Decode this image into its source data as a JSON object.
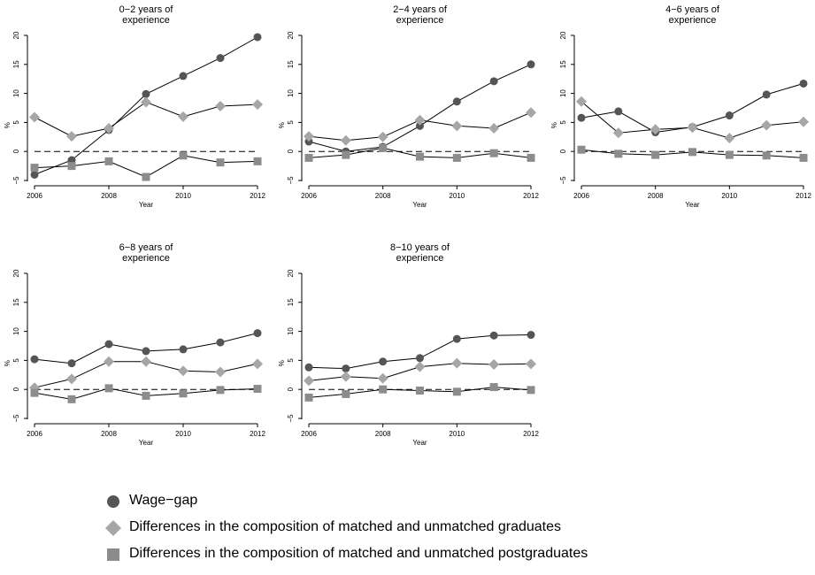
{
  "colors": {
    "wage_gap": "#555555",
    "graduates": "#a6a6a6",
    "postgraduates": "#8c8c8c",
    "line": "#000000"
  },
  "legend": [
    {
      "series": "Wage−gap",
      "marker": "circle"
    },
    {
      "series": "Differences in the composition of matched and unmatched graduates",
      "marker": "diamond"
    },
    {
      "series": "Differences in the composition of matched and unmatched postgraduates",
      "marker": "square"
    }
  ],
  "chart_data": [
    {
      "type": "line",
      "title": [
        "0−2 years of",
        "experience"
      ],
      "xlabel": "Year",
      "ylabel": "%",
      "x": [
        2006,
        2007,
        2008,
        2009,
        2010,
        2011,
        2012
      ],
      "xticks": [
        "2006",
        "2008",
        "2010",
        "2012"
      ],
      "yticks": [
        "−5",
        "0",
        "5",
        "10",
        "15",
        "20"
      ],
      "xlim": [
        2006,
        2012
      ],
      "ylim": [
        -5,
        20
      ],
      "reference_line": 0,
      "series": [
        {
          "name": "Wage−gap",
          "values": [
            -4.0,
            -1.5,
            3.7,
            9.9,
            13.0,
            16.1,
            19.7
          ]
        },
        {
          "name": "Differences in the composition of matched and unmatched graduates",
          "values": [
            5.9,
            2.6,
            4.0,
            8.5,
            6.0,
            7.8,
            8.1
          ]
        },
        {
          "name": "Differences in the composition of matched and unmatched postgraduates",
          "values": [
            -2.8,
            -2.5,
            -1.7,
            -4.4,
            -0.7,
            -1.9,
            -1.7
          ]
        }
      ]
    },
    {
      "type": "line",
      "title": [
        "2−4 years of",
        "experience"
      ],
      "xlabel": "Year",
      "ylabel": "%",
      "x": [
        2006,
        2007,
        2008,
        2009,
        2010,
        2011,
        2012
      ],
      "xticks": [
        "2006",
        "2008",
        "2010",
        "2012"
      ],
      "yticks": [
        "−5",
        "0",
        "5",
        "10",
        "15",
        "20"
      ],
      "xlim": [
        2006,
        2012
      ],
      "ylim": [
        -5,
        20
      ],
      "reference_line": 0,
      "series": [
        {
          "name": "Wage−gap",
          "values": [
            1.7,
            0.0,
            0.8,
            4.4,
            8.6,
            12.1,
            15.0
          ]
        },
        {
          "name": "Differences in the composition of matched and unmatched graduates",
          "values": [
            2.6,
            1.9,
            2.5,
            5.4,
            4.4,
            4.0,
            6.7
          ]
        },
        {
          "name": "Differences in the composition of matched and unmatched postgraduates",
          "values": [
            -1.1,
            -0.6,
            0.6,
            -0.9,
            -1.1,
            -0.3,
            -1.1
          ]
        }
      ]
    },
    {
      "type": "line",
      "title": [
        "4−6 years of",
        "experience"
      ],
      "xlabel": "Year",
      "ylabel": "%",
      "x": [
        2006,
        2007,
        2008,
        2009,
        2010,
        2011,
        2012
      ],
      "xticks": [
        "2006",
        "2008",
        "2010",
        "2012"
      ],
      "yticks": [
        "−5",
        "0",
        "5",
        "10",
        "15",
        "20"
      ],
      "xlim": [
        2006,
        2012
      ],
      "ylim": [
        -5,
        20
      ],
      "reference_line": 0,
      "series": [
        {
          "name": "Wage−gap",
          "values": [
            5.8,
            6.9,
            3.3,
            4.2,
            6.2,
            9.8,
            11.7
          ]
        },
        {
          "name": "Differences in the composition of matched and unmatched graduates",
          "values": [
            8.6,
            3.2,
            3.8,
            4.1,
            2.3,
            4.5,
            5.1
          ]
        },
        {
          "name": "Differences in the composition of matched and unmatched postgraduates",
          "values": [
            0.3,
            -0.4,
            -0.6,
            -0.1,
            -0.6,
            -0.7,
            -1.1
          ]
        }
      ]
    },
    {
      "type": "line",
      "title": [
        "6−8 years of",
        "experience"
      ],
      "xlabel": "Year",
      "ylabel": "%",
      "x": [
        2006,
        2007,
        2008,
        2009,
        2010,
        2011,
        2012
      ],
      "xticks": [
        "2006",
        "2008",
        "2010",
        "2012"
      ],
      "yticks": [
        "−5",
        "0",
        "5",
        "10",
        "15",
        "20"
      ],
      "xlim": [
        2006,
        2012
      ],
      "ylim": [
        -5,
        20
      ],
      "reference_line": 0,
      "series": [
        {
          "name": "Wage−gap",
          "values": [
            5.2,
            4.5,
            7.8,
            6.6,
            6.9,
            8.1,
            9.7
          ]
        },
        {
          "name": "Differences in the composition of matched and unmatched graduates",
          "values": [
            0.3,
            1.8,
            4.8,
            4.8,
            3.2,
            3.0,
            4.4
          ]
        },
        {
          "name": "Differences in the composition of matched and unmatched postgraduates",
          "values": [
            -0.6,
            -1.7,
            0.2,
            -1.1,
            -0.7,
            -0.1,
            0.1
          ]
        }
      ]
    },
    {
      "type": "line",
      "title": [
        "8−10 years of",
        "experience"
      ],
      "xlabel": "Year",
      "ylabel": "%",
      "x": [
        2006,
        2007,
        2008,
        2009,
        2010,
        2011,
        2012
      ],
      "xticks": [
        "2006",
        "2008",
        "2010",
        "2012"
      ],
      "yticks": [
        "−5",
        "0",
        "5",
        "10",
        "15",
        "20"
      ],
      "xlim": [
        2006,
        2012
      ],
      "ylim": [
        -5,
        20
      ],
      "reference_line": 0,
      "series": [
        {
          "name": "Wage−gap",
          "values": [
            3.8,
            3.6,
            4.8,
            5.4,
            8.7,
            9.3,
            9.4
          ]
        },
        {
          "name": "Differences in the composition of matched and unmatched graduates",
          "values": [
            1.5,
            2.2,
            1.9,
            3.9,
            4.5,
            4.3,
            4.4
          ]
        },
        {
          "name": "Differences in the composition of matched and unmatched postgraduates",
          "values": [
            -1.4,
            -0.8,
            0.0,
            -0.2,
            -0.4,
            0.4,
            -0.1
          ]
        }
      ]
    }
  ]
}
